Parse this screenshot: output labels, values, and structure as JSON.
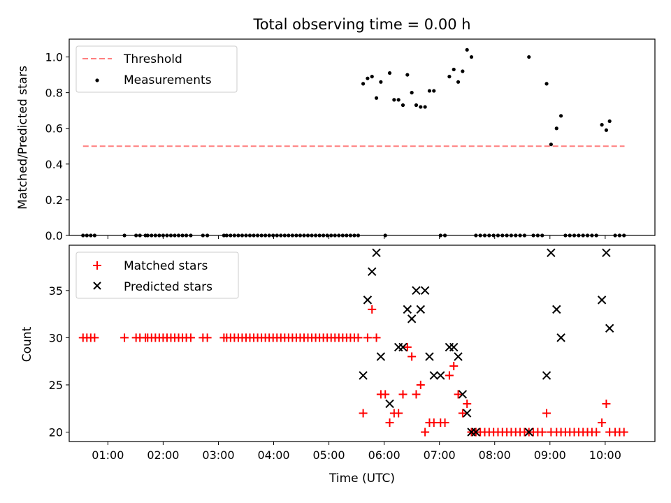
{
  "title": "Total observing time = 0.00 h",
  "colors": {
    "threshold": "#ff7f7f",
    "measurements": "#000000",
    "matched": "#ff0000",
    "predicted": "#000000"
  },
  "chart_data": [
    {
      "type": "scatter",
      "title": "Total observing time = 0.00 h",
      "xlabel": "",
      "ylabel": "Matched/Predicted stars",
      "ylim": [
        0,
        1.1
      ],
      "yticks": [
        "0.0",
        "0.2",
        "0.4",
        "0.6",
        "0.8",
        "1.0"
      ],
      "xlim": [
        0.3,
        10.9
      ],
      "legend_placement": "top-left",
      "grid": false,
      "threshold": {
        "name": "Threshold",
        "y": 0.5,
        "x_range": [
          0.55,
          10.35
        ]
      },
      "series": [
        {
          "name": "Measurements",
          "x": [
            0.55,
            0.62,
            0.69,
            0.76,
            1.3,
            1.51,
            1.58,
            1.68,
            1.72,
            1.79,
            1.86,
            1.93,
            2.0,
            2.07,
            2.14,
            2.21,
            2.28,
            2.35,
            2.42,
            2.5,
            2.72,
            2.8,
            3.1,
            3.15,
            3.22,
            3.29,
            3.36,
            3.43,
            3.5,
            3.57,
            3.64,
            3.71,
            3.78,
            3.85,
            3.92,
            3.99,
            4.06,
            4.13,
            4.2,
            4.27,
            4.34,
            4.41,
            4.48,
            4.55,
            4.62,
            4.69,
            4.76,
            4.83,
            4.9,
            4.97,
            5.04,
            5.11,
            5.18,
            5.25,
            5.32,
            5.39,
            5.46,
            5.53,
            5.62,
            5.7,
            5.78,
            5.86,
            5.94,
            6.02,
            6.1,
            6.18,
            6.26,
            6.34,
            6.42,
            6.5,
            6.58,
            6.66,
            6.74,
            6.82,
            6.9,
            7.02,
            7.1,
            7.18,
            7.26,
            7.34,
            7.42,
            7.5,
            7.58,
            7.66,
            7.74,
            7.82,
            7.9,
            7.98,
            8.06,
            8.14,
            8.22,
            8.3,
            8.38,
            8.46,
            8.54,
            8.62,
            8.7,
            8.78,
            8.86,
            8.94,
            9.02,
            9.12,
            9.2,
            9.28,
            9.36,
            9.44,
            9.52,
            9.6,
            9.68,
            9.76,
            9.84,
            9.94,
            10.02,
            10.08,
            10.18,
            10.26,
            10.34
          ],
          "y": [
            0,
            0,
            0,
            0,
            0,
            0,
            0,
            0,
            0,
            0,
            0,
            0,
            0,
            0,
            0,
            0,
            0,
            0,
            0,
            0,
            0,
            0,
            0,
            0,
            0,
            0,
            0,
            0,
            0,
            0,
            0,
            0,
            0,
            0,
            0,
            0,
            0,
            0,
            0,
            0,
            0,
            0,
            0,
            0,
            0,
            0,
            0,
            0,
            0,
            0,
            0,
            0,
            0,
            0,
            0,
            0,
            0,
            0,
            0.85,
            0.88,
            0.89,
            0.77,
            0.86,
            0,
            0.91,
            0.76,
            0.76,
            0.73,
            0.9,
            0.8,
            0.73,
            0.72,
            0.72,
            0.81,
            0.81,
            0,
            0,
            0.89,
            0.93,
            0.86,
            0.92,
            1.04,
            1.0,
            0,
            0,
            0,
            0,
            0,
            0,
            0,
            0,
            0,
            0,
            0,
            0,
            1.0,
            0,
            0,
            0,
            0.85,
            0.51,
            0.6,
            0.67,
            0,
            0,
            0,
            0,
            0,
            0,
            0,
            0,
            0.62,
            0.59,
            0.64,
            0,
            0,
            0
          ]
        }
      ]
    },
    {
      "type": "scatter",
      "xlabel": "Time (UTC)",
      "ylabel": "Count",
      "ylim": [
        19,
        39.8
      ],
      "yticks": [
        "20",
        "25",
        "30",
        "35"
      ],
      "xlim": [
        0.3,
        10.9
      ],
      "xticks": [
        "01:00",
        "02:00",
        "03:00",
        "04:00",
        "05:00",
        "06:00",
        "07:00",
        "08:00",
        "09:00",
        "10:00"
      ],
      "legend_placement": "top-left",
      "grid": false,
      "series": [
        {
          "name": "Matched stars",
          "x": [
            0.55,
            0.62,
            0.69,
            0.76,
            1.3,
            1.51,
            1.58,
            1.68,
            1.72,
            1.79,
            1.86,
            1.93,
            2.0,
            2.07,
            2.14,
            2.21,
            2.28,
            2.35,
            2.42,
            2.5,
            2.72,
            2.8,
            3.1,
            3.15,
            3.22,
            3.29,
            3.36,
            3.43,
            3.5,
            3.57,
            3.64,
            3.71,
            3.78,
            3.85,
            3.92,
            3.99,
            4.06,
            4.13,
            4.2,
            4.27,
            4.34,
            4.41,
            4.48,
            4.55,
            4.62,
            4.69,
            4.76,
            4.83,
            4.9,
            4.97,
            5.04,
            5.11,
            5.18,
            5.25,
            5.32,
            5.39,
            5.46,
            5.53,
            5.62,
            5.7,
            5.78,
            5.86,
            5.94,
            6.02,
            6.1,
            6.18,
            6.26,
            6.34,
            6.42,
            6.5,
            6.58,
            6.66,
            6.74,
            6.82,
            6.9,
            7.02,
            7.1,
            7.18,
            7.26,
            7.34,
            7.42,
            7.5,
            7.58,
            7.66,
            7.74,
            7.82,
            7.9,
            7.98,
            8.06,
            8.14,
            8.22,
            8.3,
            8.38,
            8.46,
            8.54,
            8.62,
            8.7,
            8.78,
            8.86,
            8.94,
            9.02,
            9.12,
            9.2,
            9.28,
            9.36,
            9.44,
            9.52,
            9.6,
            9.68,
            9.76,
            9.84,
            9.94,
            10.02,
            10.08,
            10.18,
            10.26,
            10.34
          ],
          "y": [
            30,
            30,
            30,
            30,
            30,
            30,
            30,
            30,
            30,
            30,
            30,
            30,
            30,
            30,
            30,
            30,
            30,
            30,
            30,
            30,
            30,
            30,
            30,
            30,
            30,
            30,
            30,
            30,
            30,
            30,
            30,
            30,
            30,
            30,
            30,
            30,
            30,
            30,
            30,
            30,
            30,
            30,
            30,
            30,
            30,
            30,
            30,
            30,
            30,
            30,
            30,
            30,
            30,
            30,
            30,
            30,
            30,
            30,
            22,
            30,
            33,
            30,
            24,
            24,
            21,
            22,
            22,
            24,
            29,
            28,
            24,
            25,
            20,
            21,
            21,
            21,
            21,
            26,
            27,
            24,
            22,
            23,
            20,
            20,
            20,
            20,
            20,
            20,
            20,
            20,
            20,
            20,
            20,
            20,
            20,
            20,
            20,
            20,
            20,
            22,
            20,
            20,
            20,
            20,
            20,
            20,
            20,
            20,
            20,
            20,
            20,
            21,
            23,
            20,
            20,
            20,
            20
          ]
        },
        {
          "name": "Predicted stars",
          "x": [
            5.62,
            5.7,
            5.78,
            5.86,
            5.94,
            6.1,
            6.26,
            6.34,
            6.42,
            6.5,
            6.58,
            6.66,
            6.74,
            6.82,
            6.9,
            7.02,
            7.18,
            7.26,
            7.34,
            7.42,
            7.5,
            7.58,
            7.66,
            8.62,
            8.94,
            9.02,
            9.12,
            9.2,
            9.94,
            10.02,
            10.08
          ],
          "y": [
            26,
            34,
            37,
            39,
            28,
            23,
            29,
            29,
            33,
            32,
            35,
            33,
            35,
            28,
            26,
            26,
            29,
            29,
            28,
            24,
            22,
            20,
            20,
            20,
            26,
            39,
            33,
            30,
            34,
            39,
            31
          ]
        }
      ]
    }
  ]
}
